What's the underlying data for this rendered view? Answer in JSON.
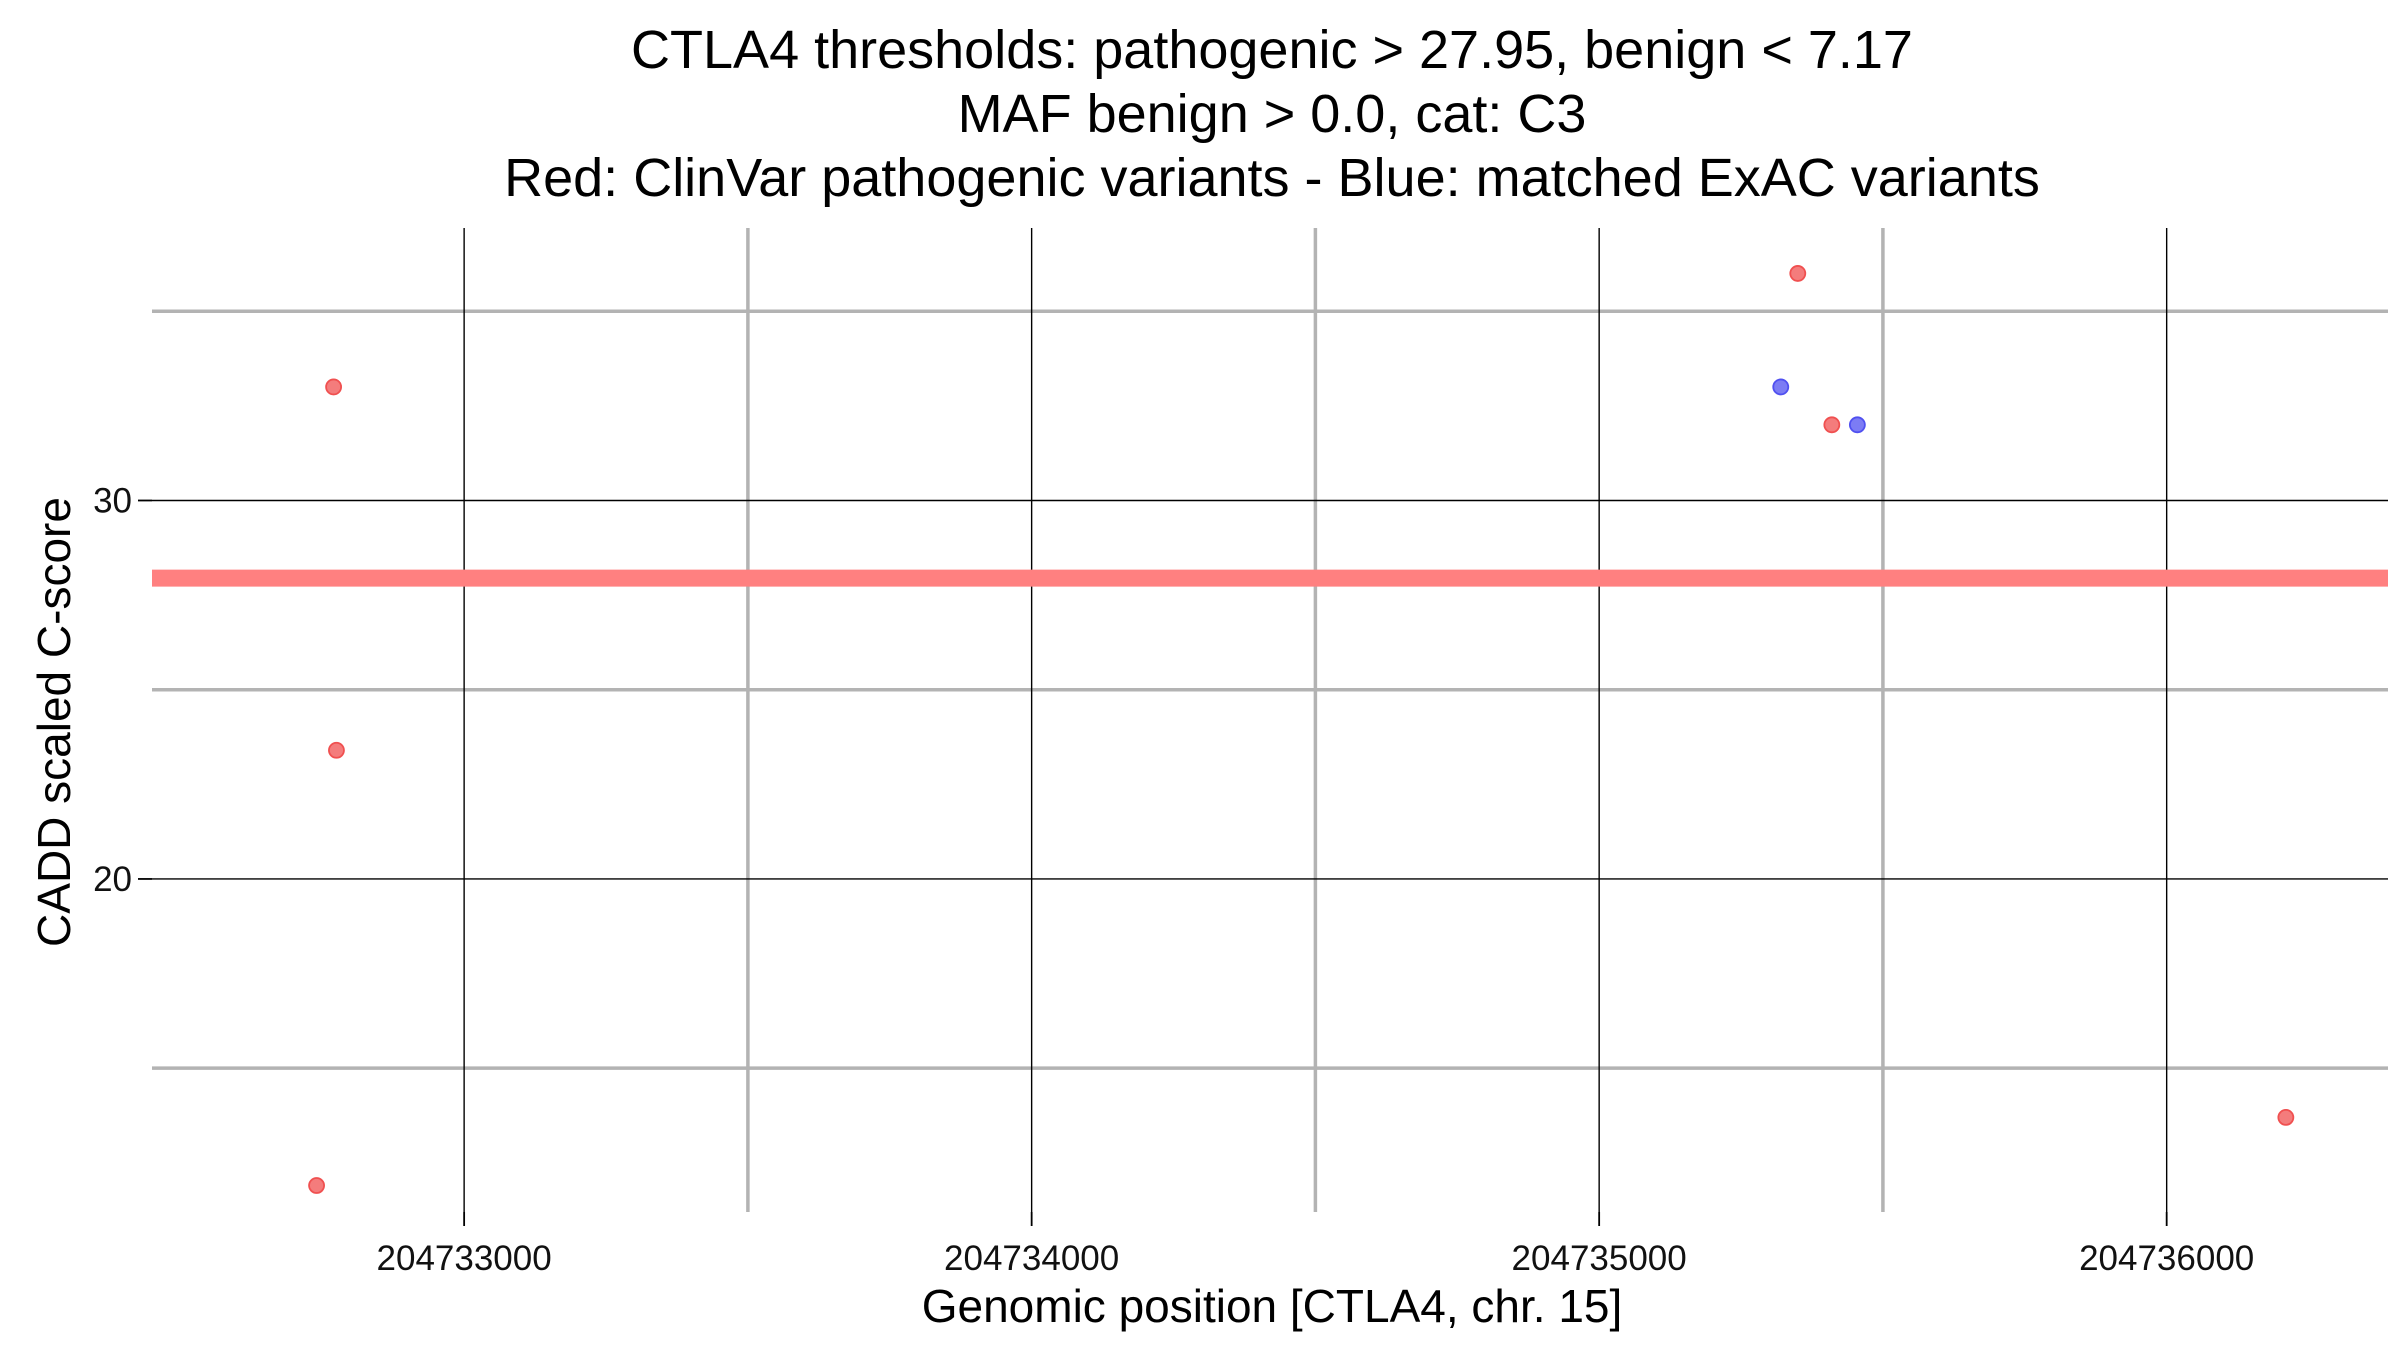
{
  "chart_data": {
    "type": "scatter",
    "title_lines": [
      "CTLA4 thresholds: pathogenic > 27.95, benign < 7.17",
      "MAF benign > 0.0, cat: C3",
      "Red: ClinVar pathogenic variants - Blue: matched ExAC variants"
    ],
    "xlabel": "Genomic position [CTLA4, chr. 15]",
    "ylabel": "CADD scaled C-score",
    "xlim": [
      204732450,
      204736390
    ],
    "ylim": [
      11.2,
      37.2
    ],
    "x_ticks": [
      204733000,
      204734000,
      204735000,
      204736000
    ],
    "x_tick_labels": [
      "204733000",
      "204734000",
      "204735000",
      "204736000"
    ],
    "x_minor_gridlines": [
      204733500,
      204734500,
      204735500
    ],
    "y_ticks": [
      20,
      30
    ],
    "y_tick_labels": [
      "20",
      "30"
    ],
    "y_minor_gridlines": [
      15,
      25,
      35
    ],
    "grid": true,
    "threshold_line": {
      "y": 27.95,
      "color": "#ff8080"
    },
    "series": [
      {
        "color": "#f05050",
        "points": [
          {
            "x": 204732740,
            "y": 11.9
          },
          {
            "x": 204732770,
            "y": 33.0
          },
          {
            "x": 204732775,
            "y": 23.4
          },
          {
            "x": 204735350,
            "y": 36.0
          },
          {
            "x": 204735410,
            "y": 32.0
          },
          {
            "x": 204736210,
            "y": 13.7
          }
        ]
      },
      {
        "color": "#5050f0",
        "points": [
          {
            "x": 204735320,
            "y": 33.0
          },
          {
            "x": 204735455,
            "y": 32.0
          }
        ]
      }
    ]
  }
}
